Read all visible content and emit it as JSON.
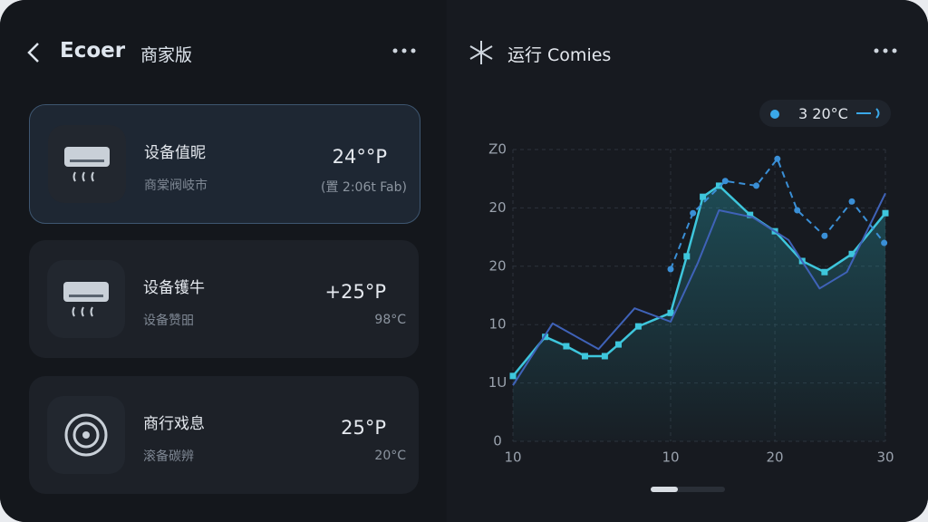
{
  "header": {
    "title": "Ecoer",
    "subtitle": "商家版"
  },
  "devices": [
    {
      "name": "设备值昵",
      "sub": "商棠阀岐市",
      "temp": "24°°P",
      "note": "(置 2:06t Fab)"
    },
    {
      "name": "设备镬牛",
      "sub": "设备赞昍",
      "temp": "+25°P",
      "note": "98°C"
    },
    {
      "name": "商行戏息",
      "sub": "滚备碳辨",
      "temp": "25°P",
      "note": "20°C"
    }
  ],
  "panel": {
    "title": "运行 Comies"
  },
  "chart_data": {
    "type": "line",
    "xlim": [
      0,
      30
    ],
    "xticks": [
      {
        "value": 0,
        "label": "10"
      },
      {
        "value": 12.7,
        "label": "10"
      },
      {
        "value": 21.1,
        "label": "20"
      },
      30
    ],
    "ylim": [
      0,
      50
    ],
    "yticks": [
      0,
      {
        "value": 10,
        "label": "1U"
      },
      {
        "value": 20,
        "label": "10"
      },
      {
        "value": 30,
        "label": "20"
      },
      {
        "value": 40,
        "label": "20"
      },
      {
        "value": 50,
        "label": "Z0"
      }
    ],
    "grid": true,
    "series": [
      {
        "name": "3 20°C",
        "color": "#3ec6dc",
        "x": [
          0,
          2.6,
          4.3,
          5.8,
          7.4,
          8.5,
          10.1,
          12.7,
          14.0,
          15.3,
          16.6,
          19.1,
          21.1,
          23.3,
          25.1,
          27.3,
          30
        ],
        "values": [
          11.2,
          17.9,
          16.3,
          14.6,
          14.6,
          16.6,
          19.7,
          22.0,
          31.7,
          41.9,
          43.8,
          38.8,
          36.0,
          30.9,
          29.0,
          32.1,
          39.1
        ]
      },
      {
        "color": "#3f62b8",
        "x": [
          0,
          3.2,
          6.9,
          9.8,
          12.7,
          14.9,
          16.6,
          19.3,
          22.2,
          24.7,
          26.9,
          30
        ],
        "values": [
          9.6,
          20.2,
          15.8,
          22.8,
          20.5,
          30.6,
          39.6,
          38.4,
          34.5,
          26.2,
          29.0,
          42.5
        ]
      },
      {
        "color": "#3a8fd6",
        "dashed": true,
        "x": [
          12.7,
          14.5,
          17.1,
          19.6,
          21.3,
          22.9,
          25.1,
          27.3,
          29.9
        ],
        "values": [
          29.5,
          39.1,
          44.6,
          43.8,
          48.4,
          39.6,
          35.2,
          41.1,
          34.0
        ]
      }
    ]
  }
}
